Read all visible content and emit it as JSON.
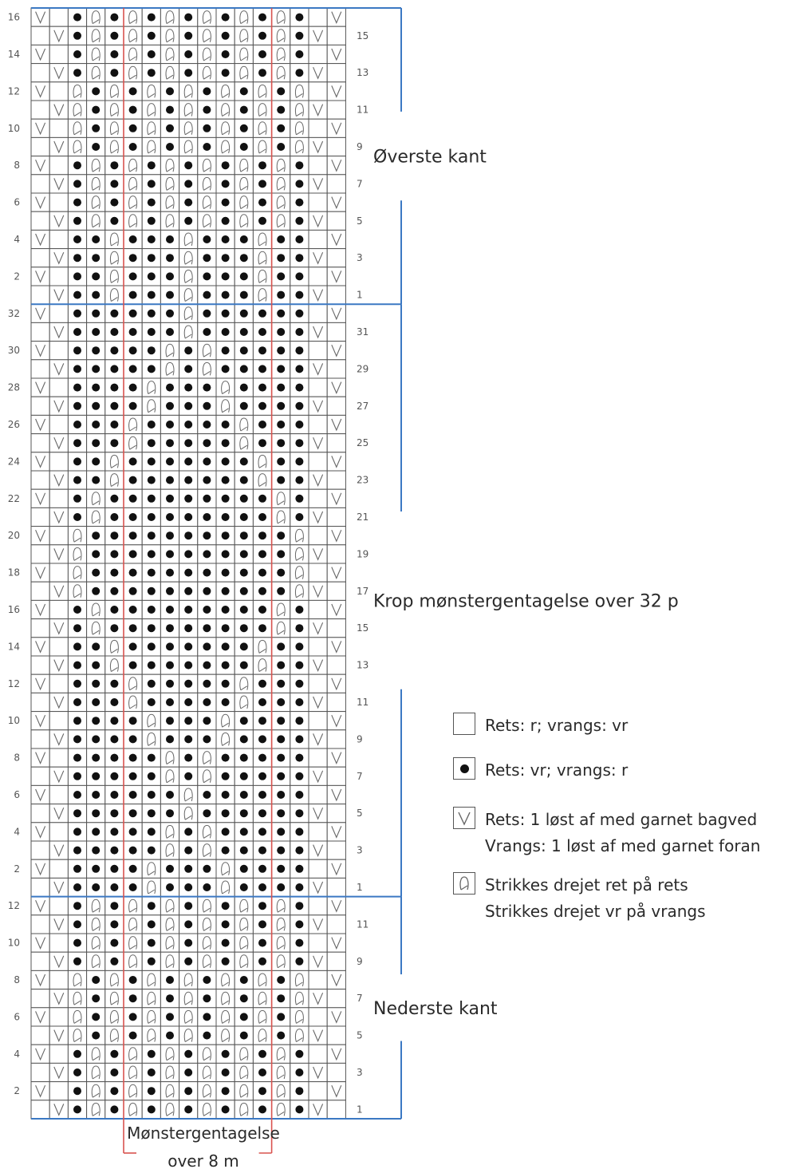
{
  "sections": [
    {
      "name": "top",
      "label": "Øverste kant",
      "rows": [
        "V.*T*T*T*T*T*T*.V",
        ".V*T*T*T*T*T*T*V.",
        "V.*T*T*T*T*T*T*.V",
        ".V*T*T*T*T*T*T*V.",
        "V.T*T*T*T*T*T*T.V",
        ".VT*T*T*T*T*T*TV.",
        "V.T*T*T*T*T*T*T.V",
        ".VT*T*T*T*T*T*TV.",
        "V.*T*T*T*T*T*T*.V",
        ".V*T*T*T*T*T*T*V.",
        "V.*T*T*T*T*T*T*.V",
        ".V*T*T*T*T*T*T*V.",
        "V.**T***T***T**.V",
        ".V**T***T***T**V.",
        "V.**T***T***T**.V",
        ".V**T***T***T**V."
      ]
    },
    {
      "name": "body",
      "label": "Krop mønstergentagelse over 32 p",
      "rows": [
        "V.******T******.V",
        ".V******T******V.",
        "V.*****T*T*****.V",
        ".V*****T*T*****V.",
        "V.****T***T****.V",
        ".V****T***T****V.",
        "V.***T*****T***.V",
        ".V***T*****T***V.",
        "V.**T*******T**.V",
        ".V**T*******T**V.",
        "V.*T*********T*.V",
        ".V*T*********T*V.",
        "V.T***********T.V",
        ".VT***********TV.",
        "V.T***********T.V",
        ".VT***********TV.",
        "V.*T*********T*.V",
        ".V*T*********T*V.",
        "V.**T*******T**.V",
        ".V**T*******T**V.",
        "V.***T*****T***.V",
        ".V***T*****T***V.",
        "V.****T***T****.V",
        ".V****T***T****V.",
        "V.*****T*T*****.V",
        ".V*****T*T*****V.",
        "V.******T******.V",
        ".V******T******V.",
        "V.*****T*T*****.V",
        ".V*****T*T*****V.",
        "V.****T***T****.V",
        ".V****T***T****V."
      ]
    },
    {
      "name": "bottom",
      "label": "Nederste kant",
      "rows": [
        "V.*T*T*T*T*T*T*.V",
        ".V*T*T*T*T*T*T*V.",
        "V.*T*T*T*T*T*T*.V",
        ".V*T*T*T*T*T*T*V.",
        "V.T*T*T*T*T*T*T.V",
        ".VT*T*T*T*T*T*TV.",
        "V.T*T*T*T*T*T*T.V",
        ".VT*T*T*T*T*T*TV.",
        "V.*T*T*T*T*T*T*.V",
        ".V*T*T*T*T*T*T*V.",
        "V.*T*T*T*T*T*T*.V",
        ".V*T*T*T*T*T*T*V."
      ]
    }
  ],
  "repeat_caption": [
    "Mønstergentagelse",
    "over 8 m"
  ],
  "legend": [
    {
      "symbol": "blank",
      "lines": [
        "Rets: r; vrangs: vr"
      ]
    },
    {
      "symbol": "dot",
      "lines": [
        "Rets: vr; vrangs: r"
      ]
    },
    {
      "symbol": "v",
      "lines": [
        "Rets: 1 løst af med garnet bagved",
        "Vrangs: 1 løst af med garnet foran"
      ]
    },
    {
      "symbol": "twist",
      "lines": [
        "Strikkes drejet ret på rets",
        "Strikkes drejet vr på vrangs"
      ]
    }
  ],
  "colors": {
    "grid": "#555555",
    "section_line": "#3b78c3",
    "repeat_line": "#d9534f",
    "dot": "#111111",
    "symbol": "#666666"
  }
}
